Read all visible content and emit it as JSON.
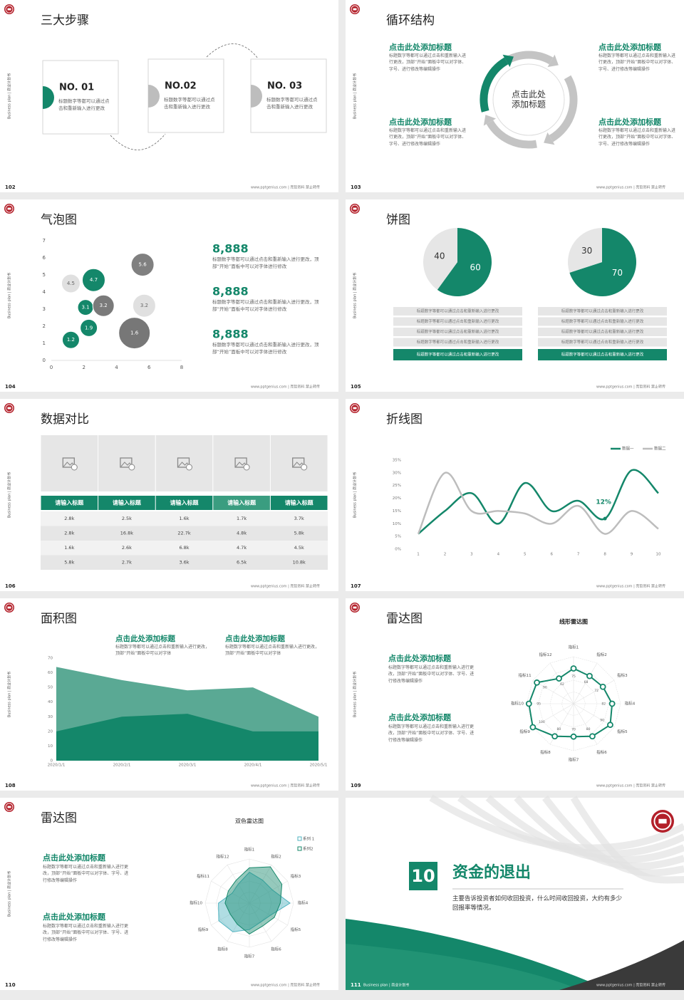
{
  "footer": {
    "site": "www.pptgenius.com | 亮哲资料 禁止转传",
    "side": "Business plan | 商业计划书"
  },
  "slides": [
    {
      "page": 102,
      "title": "三大步骤",
      "steps": [
        {
          "label": "NO. 01",
          "text": "标题数字等都可以通过点击和重新输入进行更改"
        },
        {
          "label": "NO.02",
          "text": "标题数字等都可以通过点击和重新输入进行更改"
        },
        {
          "label": "NO. 03",
          "text": "标题数字等都可以通过点击和重新输入进行更改"
        }
      ]
    },
    {
      "page": 103,
      "title": "循环结构",
      "center": [
        "点击此处",
        "添加标题"
      ],
      "blocks": [
        {
          "heading": "点击此处添加标题",
          "text": "标题数字等都可以通过点击和重新输入进行更改，顶部“开始”面板中可以对字体、字号、进行修改等编辑操作"
        },
        {
          "heading": "点击此处添加标题",
          "text": "标题数字等都可以通过点击和重新输入进行更改，顶部“开始”面板中可以对字体、字号、进行修改等编辑操作"
        },
        {
          "heading": "点击此处添加标题",
          "text": "标题数字等都可以通过点击和重新输入进行更改，顶部“开始”面板中可以对字体、字号、进行修改等编辑操作"
        },
        {
          "heading": "点击此处添加标题",
          "text": "标题数字等都可以通过点击和重新输入进行更改，顶部“开始”面板中可以对字体、字号、进行修改等编辑操作"
        }
      ]
    },
    {
      "page": 104,
      "title": "气泡图",
      "chart": {
        "type": "scatter",
        "xlim": [
          0,
          8
        ],
        "xticks": [
          0,
          2,
          4,
          6,
          8
        ],
        "ylim": [
          0,
          7
        ],
        "yticks": [
          0,
          1,
          2,
          3,
          4,
          5,
          6,
          7
        ],
        "points": [
          {
            "x": 1.2,
            "y": 1.2,
            "size": 12,
            "color": "#14876a"
          },
          {
            "x": 2.3,
            "y": 1.9,
            "size": 12,
            "color": "#14876a"
          },
          {
            "x": 2.1,
            "y": 3.1,
            "size": 11,
            "color": "#14876a"
          },
          {
            "x": 3.2,
            "y": 3.2,
            "size": 15,
            "color": "#7a7a7a"
          },
          {
            "x": 2.6,
            "y": 4.7,
            "size": 16,
            "color": "#14876a"
          },
          {
            "x": 1.2,
            "y": 4.5,
            "size": 13,
            "color": "#e0e0e0"
          },
          {
            "x": 5.6,
            "y": 5.6,
            "size": 16,
            "color": "#808080"
          },
          {
            "x": 5.7,
            "y": 3.2,
            "size": 16,
            "color": "#e0e0e0"
          },
          {
            "x": 5.1,
            "y": 1.6,
            "size": 22,
            "color": "#777777"
          }
        ]
      },
      "items": [
        {
          "value": "8,888",
          "text": "标题数字等都可以通过点击和重新输入进行更改，顶部“开始”面板中可以对字体进行修改"
        },
        {
          "value": "8,888",
          "text": "标题数字等都可以通过点击和重新输入进行更改，顶部“开始”面板中可以对字体进行修改"
        },
        {
          "value": "8,888",
          "text": "标题数字等都可以通过点击和重新输入进行更改，顶部“开始”面板中可以对字体进行修改"
        }
      ]
    },
    {
      "page": 105,
      "title": "饼图",
      "charts": [
        {
          "type": "pie",
          "values": [
            60,
            40
          ],
          "colors": [
            "#14876a",
            "#e6e6e6"
          ],
          "rows": [
            "标题数字等都可以通过点击和重新输入进行更改",
            "标题数字等都可以通过点击和重新输入进行更改",
            "标题数字等都可以通过点击和重新输入进行更改",
            "标题数字等都可以通过点击和重新输入进行更改",
            "标题数字等都可以通过点击和重新输入进行更改"
          ]
        },
        {
          "type": "pie",
          "values": [
            70,
            30
          ],
          "colors": [
            "#14876a",
            "#e6e6e6"
          ],
          "rows": [
            "标题数字等都可以通过点击和重新输入进行更改",
            "标题数字等都可以通过点击和重新输入进行更改",
            "标题数字等都可以通过点击和重新输入进行更改",
            "标题数字等都可以通过点击和重新输入进行更改",
            "标题数字等都可以通过点击和重新输入进行更改"
          ]
        }
      ]
    },
    {
      "page": 106,
      "title": "数据对比",
      "table": {
        "header": [
          "请输入标题",
          "请输入标题",
          "请输入标题",
          "请输入标题",
          "请输入标题"
        ],
        "rows": [
          [
            "2.8k",
            "2.5k",
            "1.6k",
            "1.7k",
            "3.7k"
          ],
          [
            "2.8k",
            "16.8k",
            "22.7k",
            "4.8k",
            "5.8k"
          ],
          [
            "1.6k",
            "2.6k",
            "6.8k",
            "4.7k",
            "4.5k"
          ],
          [
            "5.8k",
            "2.7k",
            "3.6k",
            "6.5k",
            "10.8k"
          ]
        ]
      }
    },
    {
      "page": 107,
      "title": "折线图",
      "chart": {
        "type": "line",
        "x": [
          1,
          2,
          3,
          4,
          5,
          6,
          7,
          8,
          9,
          10
        ],
        "xlim": [
          1,
          10
        ],
        "xticks": [
          1,
          2,
          3,
          4,
          5,
          6,
          7,
          8,
          9,
          10
        ],
        "ylim": [
          0,
          35
        ],
        "yticks": [
          {
            "value": 0,
            "label": "0%"
          },
          {
            "value": 5,
            "label": "5%"
          },
          {
            "value": 10,
            "label": "10%"
          },
          {
            "value": 15,
            "label": "15%"
          },
          {
            "value": 20,
            "label": "20%"
          },
          {
            "value": 25,
            "label": "25%"
          },
          {
            "value": 30,
            "label": "30%"
          },
          {
            "value": 35,
            "label": "35%"
          }
        ],
        "series": [
          {
            "name": "数据一",
            "color": "#14876a",
            "values": [
              6,
              15,
              22,
              10,
              26,
              15,
              19,
              12,
              31,
              22
            ]
          },
          {
            "name": "数据二",
            "color": "#bdbdbd",
            "values": [
              6,
              30,
              15,
              15,
              14,
              10,
              17,
              6,
              15,
              8
            ]
          }
        ],
        "annotation": {
          "x": 8,
          "y": 12,
          "label": "12%"
        }
      }
    },
    {
      "page": 108,
      "title": "面积图",
      "blocks": [
        {
          "heading": "点击此处添加标题",
          "text": "标题数字等都可以通过点击和重新输入进行更改，顶部“开始”面板中可以对字体"
        },
        {
          "heading": "点击此处添加标题",
          "text": "标题数字等都可以通过点击和重新输入进行更改，顶部“开始”面板中可以对字体"
        }
      ],
      "chart": {
        "type": "area",
        "categories": [
          "2020/1/1",
          "2020/2/1",
          "2020/3/1",
          "2020/4/1",
          "2020/5/1"
        ],
        "ylim": [
          0,
          70
        ],
        "yticks": [
          0,
          10,
          20,
          30,
          40,
          50,
          60,
          70
        ],
        "series": [
          {
            "color": "#5aa994",
            "values": [
              64,
              55,
              48,
              50,
              30
            ]
          },
          {
            "color": "#14876a",
            "values": [
              20,
              30,
              32,
              20,
              20
            ]
          }
        ]
      }
    },
    {
      "page": 109,
      "title": "雷达图",
      "blocks": [
        {
          "heading": "点击此处添加标题",
          "text": "标题数字等都可以通过点击和重新输入进行更改，顶部“开始”面板中可以对字体、字号、进行修改等编辑操作"
        },
        {
          "heading": "点击此处添加标题",
          "text": "标题数字等都可以通过点击和重新输入进行更改，顶部“开始”面板中可以对字体、字号、进行修改等编辑操作"
        }
      ],
      "chart": {
        "type": "radar",
        "title": "线形雷达图",
        "categories": [
          "指标1",
          "指标2",
          "指标3",
          "指标4",
          "指标5",
          "指标6",
          "指标7",
          "指标8",
          "指标9",
          "指标10",
          "指标11",
          "指标12"
        ],
        "rlim": [
          0,
          100
        ],
        "series": [
          {
            "color": "#14876a",
            "values": [
              75,
              68,
              72,
              82,
              90,
              80,
              70,
              80,
              100,
              95,
              90,
              62
            ]
          }
        ]
      }
    },
    {
      "page": 110,
      "title": "雷达图",
      "blocks": [
        {
          "heading": "点击此处添加标题",
          "text": "标题数字等都可以通过点击和重新输入进行更改，顶部“开始”面板中可以对字体、字号、进行修改等编辑操作"
        },
        {
          "heading": "点击此处添加标题",
          "text": "标题数字等都可以通过点击和重新输入进行更改，顶部“开始”面板中可以对字体、字号、进行修改等编辑操作"
        }
      ],
      "chart": {
        "type": "radar",
        "title": "双色雷达图",
        "categories": [
          "指标1",
          "指标2",
          "指标3",
          "指标4",
          "指标5",
          "指标6",
          "指标7",
          "指标8",
          "指标9",
          "指标10",
          "指标11",
          "指标12"
        ],
        "rlim": [
          0,
          100
        ],
        "series": [
          {
            "name": "系列 1",
            "color": "#4fb3c0",
            "values": [
              70,
              60,
              60,
              92,
              55,
              50,
              60,
              75,
              80,
              70,
              45,
              50
            ]
          },
          {
            "name": "系列2",
            "color": "#14876a",
            "values": [
              80,
              95,
              85,
              70,
              65,
              60,
              70,
              55,
              50,
              55,
              55,
              60
            ]
          }
        ]
      }
    },
    {
      "page": 111,
      "number": "10",
      "title": "资金的退出",
      "text": "主要告诉投资者如何收回投资，什么时间收回投资，大约有多少回报率等情况。"
    }
  ]
}
